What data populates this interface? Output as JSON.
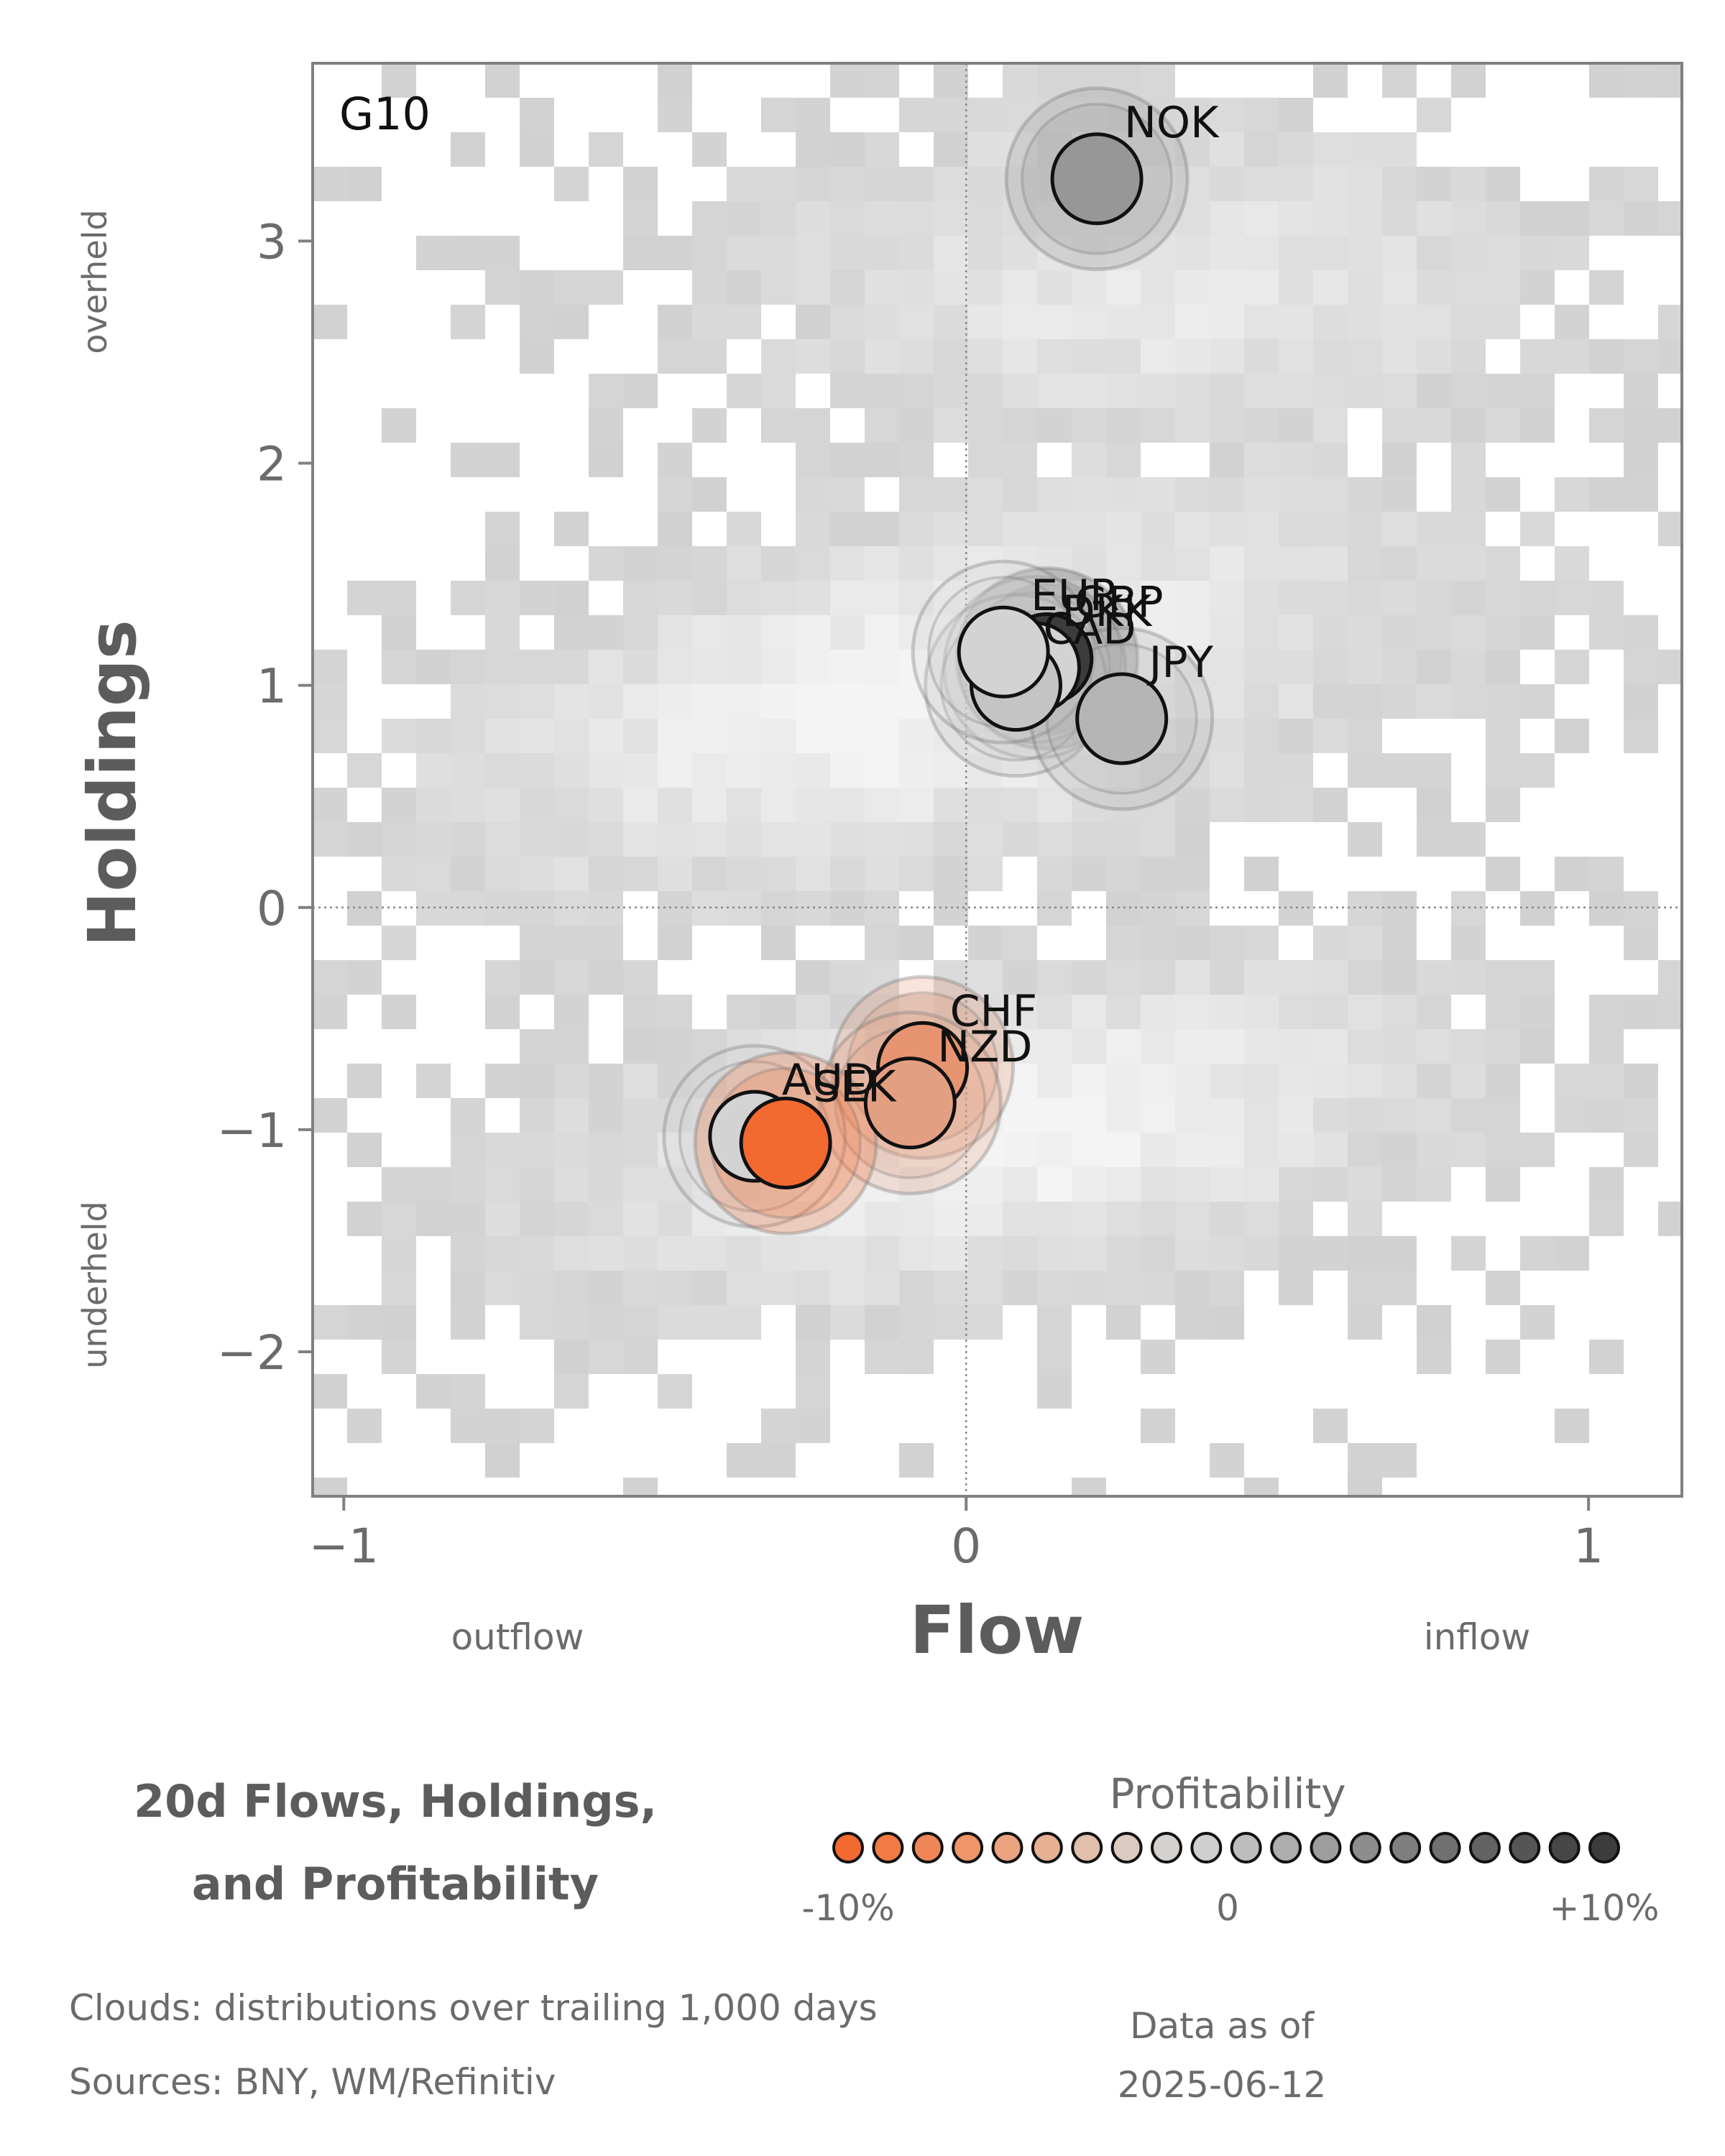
{
  "panel_label": "G10",
  "chart_data": {
    "type": "scatter",
    "xlabel": "Flow",
    "ylabel": "Holdings",
    "xlim": [
      -1.05,
      1.15
    ],
    "ylim": [
      -2.65,
      3.8
    ],
    "xticks": [
      -1,
      0,
      1
    ],
    "xtick_labels": [
      "−1",
      "0",
      "1"
    ],
    "yticks": [
      -2,
      -1,
      0,
      1,
      2,
      3
    ],
    "ytick_labels": [
      "−2",
      "−1",
      "0",
      "1",
      "2",
      "3"
    ],
    "x_annotations": {
      "negative": "outflow",
      "positive": "inflow"
    },
    "y_annotations": {
      "positive": "overheld",
      "negative": "underheld"
    },
    "reference_lines": {
      "x": 0,
      "y": 0
    },
    "points": [
      {
        "label": "NOK",
        "x": 0.21,
        "y": 3.28,
        "profitability": 4
      },
      {
        "label": "GBP",
        "x": 0.13,
        "y": 1.12,
        "profitability": 10
      },
      {
        "label": "DKK",
        "x": 0.11,
        "y": 1.08,
        "profitability": 0
      },
      {
        "label": "CAD",
        "x": 0.08,
        "y": 1.0,
        "profitability": 1
      },
      {
        "label": "EUR",
        "x": 0.06,
        "y": 1.15,
        "profitability": 0
      },
      {
        "label": "JPY",
        "x": 0.25,
        "y": 0.85,
        "profitability": 2
      },
      {
        "label": "CHF",
        "x": -0.07,
        "y": -0.72,
        "profitability": -6
      },
      {
        "label": "NZD",
        "x": -0.09,
        "y": -0.88,
        "profitability": -5
      },
      {
        "label": "AUD",
        "x": -0.34,
        "y": -1.03,
        "profitability": 0
      },
      {
        "label": "SEK",
        "x": -0.29,
        "y": -1.06,
        "profitability": -10
      }
    ],
    "clouds_description": "distributions over trailing 1,000 days"
  },
  "legend": {
    "title": "Profitability",
    "min_label": "-10%",
    "mid_label": "0",
    "max_label": "+10%",
    "colors": [
      "#f26a30",
      "#f27a45",
      "#f08658",
      "#ee9569",
      "#eba37f",
      "#e7b092",
      "#e2bfaa",
      "#dccac0",
      "#d5d1ce",
      "#cfcfcf",
      "#bdbdbd",
      "#adadad",
      "#9d9d9d",
      "#8d8d8d",
      "#7f7f7f",
      "#707070",
      "#636363",
      "#555555",
      "#474747",
      "#3c3c3c"
    ]
  },
  "footer": {
    "title_line1": "20d Flows, Holdings,",
    "title_line2": "and Profitability",
    "clouds_note": "Clouds:  distributions over trailing 1,000 days",
    "sources_note": "Sources:  BNY, WM/Refinitiv",
    "as_of_label": "Data as of",
    "as_of_date": "2025-06-12"
  }
}
